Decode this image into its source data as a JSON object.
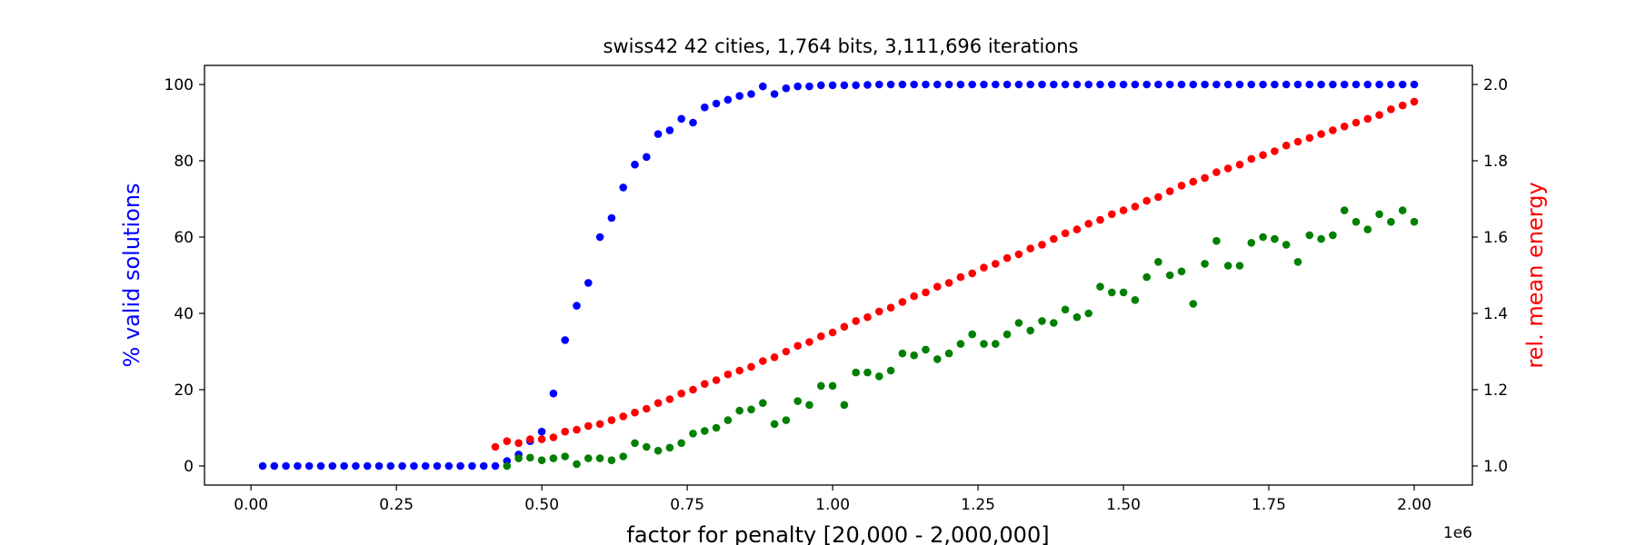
{
  "chart_data": {
    "type": "scatter",
    "title": "swiss42 42 cities, 1,764 bits, 3,111,696 iterations",
    "xlabel": "factor for penalty [20,000 - 2,000,000]",
    "x_offset_label": "1e6",
    "ylabel_left": "% valid solutions",
    "ylabel_right": "rel. mean energy",
    "xlim": [
      -0.08,
      2.1
    ],
    "ylim_left": [
      -5,
      105
    ],
    "ylim_right": [
      0.95,
      2.05
    ],
    "x_ticks": [
      0.0,
      0.25,
      0.5,
      0.75,
      1.0,
      1.25,
      1.5,
      1.75,
      2.0
    ],
    "x_tick_labels": [
      "0.00",
      "0.25",
      "0.50",
      "0.75",
      "1.00",
      "1.25",
      "1.50",
      "1.75",
      "2.00"
    ],
    "y_left_ticks": [
      0,
      20,
      40,
      60,
      80,
      100
    ],
    "y_left_tick_labels": [
      "0",
      "20",
      "40",
      "60",
      "80",
      "100"
    ],
    "y_right_ticks": [
      1.0,
      1.2,
      1.4,
      1.6,
      1.8,
      2.0
    ],
    "y_right_tick_labels": [
      "1.0",
      "1.2",
      "1.4",
      "1.6",
      "1.8",
      "2.0"
    ],
    "grid": false,
    "legend": "none",
    "colors": {
      "left_axis": "#0000ff",
      "right_axis": "#ff0000"
    },
    "series": [
      {
        "axis": "left",
        "color": "#0000ff",
        "x": [
          0.02,
          0.04,
          0.06,
          0.08,
          0.1,
          0.12,
          0.14,
          0.16,
          0.18,
          0.2,
          0.22,
          0.24,
          0.26,
          0.28,
          0.3,
          0.32,
          0.34,
          0.36,
          0.38,
          0.4,
          0.42,
          0.44,
          0.46,
          0.48,
          0.5,
          0.52,
          0.54,
          0.56,
          0.58,
          0.6,
          0.62,
          0.64,
          0.66,
          0.68,
          0.7,
          0.72,
          0.74,
          0.76,
          0.78,
          0.8,
          0.82,
          0.84,
          0.86,
          0.88,
          0.9,
          0.92,
          0.94,
          0.96,
          0.98,
          1.0,
          1.02,
          1.04,
          1.06,
          1.08,
          1.1,
          1.12,
          1.14,
          1.16,
          1.18,
          1.2,
          1.22,
          1.24,
          1.26,
          1.28,
          1.3,
          1.32,
          1.34,
          1.36,
          1.38,
          1.4,
          1.42,
          1.44,
          1.46,
          1.48,
          1.5,
          1.52,
          1.54,
          1.56,
          1.58,
          1.6,
          1.62,
          1.64,
          1.66,
          1.68,
          1.7,
          1.72,
          1.74,
          1.76,
          1.78,
          1.8,
          1.82,
          1.84,
          1.86,
          1.88,
          1.9,
          1.92,
          1.94,
          1.96,
          1.98,
          2.0
        ],
        "values": [
          0,
          0,
          0,
          0,
          0,
          0,
          0,
          0,
          0,
          0,
          0,
          0,
          0,
          0,
          0,
          0,
          0,
          0,
          0,
          0,
          0,
          1.3,
          3,
          6.5,
          9,
          19,
          33,
          42,
          48,
          60,
          65,
          73,
          79,
          81,
          87,
          88,
          91,
          90,
          94,
          95,
          96,
          97,
          97.5,
          99.5,
          97.5,
          99,
          99.5,
          99.5,
          99.8,
          99.8,
          99.8,
          99.8,
          99.9,
          100,
          100,
          100,
          100,
          100,
          100,
          100,
          100,
          100,
          100,
          100,
          100,
          100,
          100,
          100,
          100,
          100,
          100,
          100,
          100,
          100,
          100,
          100,
          100,
          100,
          100,
          100,
          100,
          100,
          100,
          100,
          100,
          100,
          100,
          100,
          100,
          100,
          100,
          100,
          100,
          100,
          100,
          100,
          100,
          100,
          100,
          100
        ]
      },
      {
        "axis": "right",
        "color": "#ff0000",
        "x": [
          0.42,
          0.44,
          0.46,
          0.48,
          0.5,
          0.52,
          0.54,
          0.56,
          0.58,
          0.6,
          0.62,
          0.64,
          0.66,
          0.68,
          0.7,
          0.72,
          0.74,
          0.76,
          0.78,
          0.8,
          0.82,
          0.84,
          0.86,
          0.88,
          0.9,
          0.92,
          0.94,
          0.96,
          0.98,
          1.0,
          1.02,
          1.04,
          1.06,
          1.08,
          1.1,
          1.12,
          1.14,
          1.16,
          1.18,
          1.2,
          1.22,
          1.24,
          1.26,
          1.28,
          1.3,
          1.32,
          1.34,
          1.36,
          1.38,
          1.4,
          1.42,
          1.44,
          1.46,
          1.48,
          1.5,
          1.52,
          1.54,
          1.56,
          1.58,
          1.6,
          1.62,
          1.64,
          1.66,
          1.68,
          1.7,
          1.72,
          1.74,
          1.76,
          1.78,
          1.8,
          1.82,
          1.84,
          1.86,
          1.88,
          1.9,
          1.92,
          1.94,
          1.96,
          1.98,
          2.0
        ],
        "values": [
          1.05,
          1.065,
          1.06,
          1.07,
          1.07,
          1.075,
          1.09,
          1.095,
          1.105,
          1.11,
          1.12,
          1.13,
          1.14,
          1.15,
          1.165,
          1.175,
          1.19,
          1.2,
          1.215,
          1.225,
          1.24,
          1.25,
          1.26,
          1.275,
          1.285,
          1.3,
          1.315,
          1.325,
          1.34,
          1.35,
          1.365,
          1.38,
          1.39,
          1.405,
          1.415,
          1.43,
          1.445,
          1.455,
          1.47,
          1.48,
          1.495,
          1.505,
          1.52,
          1.53,
          1.545,
          1.555,
          1.57,
          1.58,
          1.595,
          1.61,
          1.62,
          1.635,
          1.645,
          1.66,
          1.67,
          1.68,
          1.695,
          1.705,
          1.72,
          1.735,
          1.745,
          1.755,
          1.77,
          1.78,
          1.79,
          1.805,
          1.815,
          1.825,
          1.84,
          1.85,
          1.86,
          1.87,
          1.88,
          1.89,
          1.9,
          1.91,
          1.92,
          1.935,
          1.945,
          1.955
        ]
      },
      {
        "axis": "right",
        "color": "#008000",
        "x": [
          0.44,
          0.46,
          0.48,
          0.5,
          0.52,
          0.54,
          0.56,
          0.58,
          0.6,
          0.62,
          0.64,
          0.66,
          0.68,
          0.7,
          0.72,
          0.74,
          0.76,
          0.78,
          0.8,
          0.82,
          0.84,
          0.86,
          0.88,
          0.9,
          0.92,
          0.94,
          0.96,
          0.98,
          1.0,
          1.02,
          1.04,
          1.06,
          1.08,
          1.1,
          1.12,
          1.14,
          1.16,
          1.18,
          1.2,
          1.22,
          1.24,
          1.26,
          1.28,
          1.3,
          1.32,
          1.34,
          1.36,
          1.38,
          1.4,
          1.42,
          1.44,
          1.46,
          1.48,
          1.5,
          1.52,
          1.54,
          1.56,
          1.58,
          1.6,
          1.62,
          1.64,
          1.66,
          1.68,
          1.7,
          1.72,
          1.74,
          1.76,
          1.78,
          1.8,
          1.82,
          1.84,
          1.86,
          1.88,
          1.9,
          1.92,
          1.94,
          1.96,
          1.98,
          2.0
        ],
        "values": [
          1.0,
          1.02,
          1.022,
          1.015,
          1.02,
          1.025,
          1.005,
          1.02,
          1.02,
          1.015,
          1.025,
          1.06,
          1.05,
          1.04,
          1.048,
          1.06,
          1.085,
          1.092,
          1.1,
          1.12,
          1.145,
          1.148,
          1.165,
          1.11,
          1.12,
          1.17,
          1.16,
          1.21,
          1.21,
          1.16,
          1.245,
          1.245,
          1.235,
          1.25,
          1.295,
          1.29,
          1.305,
          1.28,
          1.295,
          1.32,
          1.345,
          1.32,
          1.32,
          1.345,
          1.375,
          1.355,
          1.38,
          1.375,
          1.41,
          1.39,
          1.4,
          1.47,
          1.455,
          1.455,
          1.435,
          1.495,
          1.535,
          1.5,
          1.51,
          1.425,
          1.53,
          1.59,
          1.525,
          1.525,
          1.585,
          1.6,
          1.595,
          1.58,
          1.535,
          1.605,
          1.595,
          1.605,
          1.67,
          1.64,
          1.62,
          1.66,
          1.64,
          1.67,
          1.64
        ]
      }
    ]
  }
}
